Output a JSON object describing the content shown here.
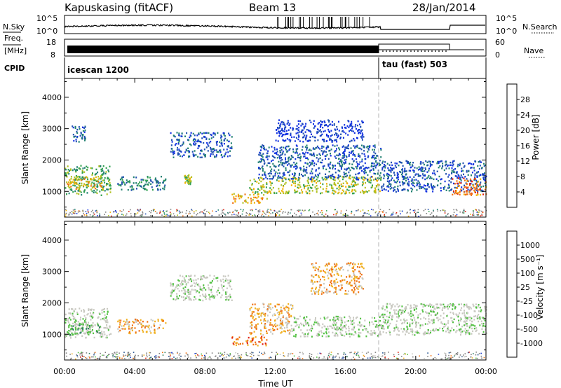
{
  "header": {
    "station": "Kapuskasing (fitACF)",
    "beam": "Beam 13",
    "date": "28/Jan/2014"
  },
  "noise_panel": {
    "left_label": "N.Sky",
    "right_label": "N.Search",
    "left_ticks": [
      "10^5",
      "10^0"
    ],
    "right_ticks": [
      "10^5",
      "10^0"
    ]
  },
  "freq_panel": {
    "left_label_1": "Freq.",
    "left_label_2": "[MHz]",
    "right_label": "Nave",
    "left_ticks": [
      "18",
      "8"
    ],
    "right_ticks": [
      "60",
      "0"
    ]
  },
  "cpid_panel": {
    "label": "CPID",
    "modes": [
      {
        "name": "icescan 1200",
        "start_hour": 0
      },
      {
        "name": "tau (fast) 503",
        "start_hour": 18
      }
    ]
  },
  "chart_data": [
    {
      "type": "heatmap",
      "parameter": "power",
      "ylabel": "Slant Range [km]",
      "ylim": [
        180,
        4600
      ],
      "y_ticks": [
        "1000",
        "2000",
        "3000",
        "4000"
      ],
      "x_range_hours": [
        0,
        24
      ],
      "colorbar": {
        "label": "Power [dB]",
        "tick_labels": [
          "4",
          "8",
          "12",
          "16",
          "20",
          "24",
          "28"
        ],
        "colors": [
          "#1030e0",
          "#2050b0",
          "#208070",
          "#30a050",
          "#b0c020",
          "#f0b000",
          "#f07010",
          "#e02010"
        ]
      },
      "echo_regions": [
        {
          "t": [
            0,
            2.6
          ],
          "r": [
            900,
            1850
          ],
          "level": 3
        },
        {
          "t": [
            0.4,
            1.2
          ],
          "r": [
            2600,
            3100
          ],
          "level": 1
        },
        {
          "t": [
            0.1,
            2.2
          ],
          "r": [
            1100,
            1500
          ],
          "level": 5
        },
        {
          "t": [
            3.0,
            5.8
          ],
          "r": [
            1050,
            1500
          ],
          "level": 2
        },
        {
          "t": [
            6.0,
            9.5
          ],
          "r": [
            2100,
            2900
          ],
          "level": 1
        },
        {
          "t": [
            6.8,
            7.2
          ],
          "r": [
            1250,
            1550
          ],
          "level": 4
        },
        {
          "t": [
            9.5,
            11.5
          ],
          "r": [
            650,
            950
          ],
          "level": 5
        },
        {
          "t": [
            10.5,
            18.0
          ],
          "r": [
            950,
            1500
          ],
          "level": 4
        },
        {
          "t": [
            11.0,
            18.0
          ],
          "r": [
            1400,
            2500
          ],
          "level": 1
        },
        {
          "t": [
            12.0,
            17.0
          ],
          "r": [
            2600,
            3300
          ],
          "level": 0
        },
        {
          "t": [
            18.0,
            24.0
          ],
          "r": [
            1000,
            2000
          ],
          "level": 1
        },
        {
          "t": [
            22.0,
            24.0
          ],
          "r": [
            900,
            1450
          ],
          "level": 6
        }
      ]
    },
    {
      "type": "heatmap",
      "parameter": "velocity",
      "ylabel": "Slant Range [km]",
      "ylim": [
        180,
        4600
      ],
      "y_ticks": [
        "1000",
        "2000",
        "3000",
        "4000"
      ],
      "x_range_hours": [
        0,
        24
      ],
      "x_ticks": [
        "00:00",
        "04:00",
        "08:00",
        "12:00",
        "16:00",
        "20:00",
        "00:00"
      ],
      "xlabel": "Time UT",
      "colorbar": {
        "label": "Velocity [m s⁻¹]",
        "tick_labels": [
          "1000",
          "500",
          "100",
          "25",
          "-25",
          "-100",
          "-500",
          "-1000"
        ],
        "colors": [
          "#2040d0",
          "#205090",
          "#308060",
          "#50c040",
          "#c8c8c0",
          "#c8c8c0",
          "#f0b020",
          "#f07010",
          "#e02010"
        ]
      },
      "echo_regions": [
        {
          "t": [
            0,
            2.6
          ],
          "r": [
            900,
            1850
          ],
          "level": 4
        },
        {
          "t": [
            0.1,
            2.0
          ],
          "r": [
            1000,
            1400
          ],
          "level": 3
        },
        {
          "t": [
            3.0,
            5.8
          ],
          "r": [
            1050,
            1500
          ],
          "level": 6
        },
        {
          "t": [
            6.0,
            9.5
          ],
          "r": [
            2100,
            2900
          ],
          "level": 4
        },
        {
          "t": [
            9.5,
            11.5
          ],
          "r": [
            650,
            950
          ],
          "level": 7
        },
        {
          "t": [
            10.5,
            13.0
          ],
          "r": [
            1000,
            2000
          ],
          "level": 6
        },
        {
          "t": [
            13.0,
            18.0
          ],
          "r": [
            950,
            1600
          ],
          "level": 4
        },
        {
          "t": [
            14.0,
            17.0
          ],
          "r": [
            2300,
            3300
          ],
          "level": 6
        },
        {
          "t": [
            18.0,
            24.0
          ],
          "r": [
            1000,
            2000
          ],
          "level": 4
        }
      ]
    }
  ],
  "colors": {
    "ground_scatter": "#808080"
  }
}
